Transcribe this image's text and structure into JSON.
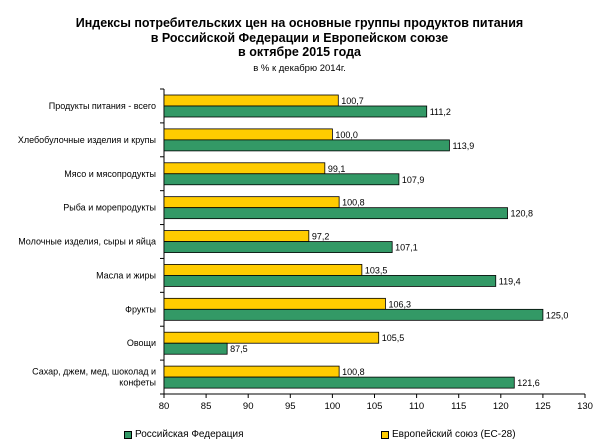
{
  "chart_data": {
    "type": "bar",
    "orientation": "horizontal",
    "title_lines": [
      "Индексы потребительских цен на основные группы продуктов питания",
      "в Российской Федерации и Европейском союзе",
      "в октябре 2015 года"
    ],
    "subtitle": "в % к декабрю 2014г.",
    "categories": [
      [
        "Продукты питания - всего"
      ],
      [
        "Хлебобулочные изделия и крупы"
      ],
      [
        "Мясо и мясопродукты"
      ],
      [
        "Рыба и морепродукты"
      ],
      [
        "Молочные изделия, сыры и яйца"
      ],
      [
        "Масла и жиры"
      ],
      [
        "Фрукты"
      ],
      [
        "Овощи"
      ],
      [
        "Сахар, джем, мед, шоколад и",
        "конфеты"
      ]
    ],
    "series": [
      {
        "name": "Европейский союз (ЕС-28)",
        "color": "#ffcc00",
        "values": [
          100.7,
          100.0,
          99.1,
          100.8,
          97.2,
          103.5,
          106.3,
          105.5,
          100.8
        ],
        "labels": [
          "100,7",
          "100,0",
          "99,1",
          "100,8",
          "97,2",
          "103,5",
          "106,3",
          "105,5",
          "100,8"
        ]
      },
      {
        "name": "Российская Федерация",
        "color": "#339966",
        "values": [
          111.2,
          113.9,
          107.9,
          120.8,
          107.1,
          119.4,
          125.0,
          87.5,
          121.6
        ],
        "labels": [
          "111,2",
          "113,9",
          "107,9",
          "120,8",
          "107,1",
          "119,4",
          "125,0",
          "87,5",
          "121,6"
        ]
      }
    ],
    "xlim": [
      80,
      130
    ],
    "xticks": [
      "80",
      "85",
      "90",
      "95",
      "100",
      "105",
      "110",
      "115",
      "120",
      "125",
      "130"
    ],
    "legend_position": "bottom",
    "grid": false
  }
}
